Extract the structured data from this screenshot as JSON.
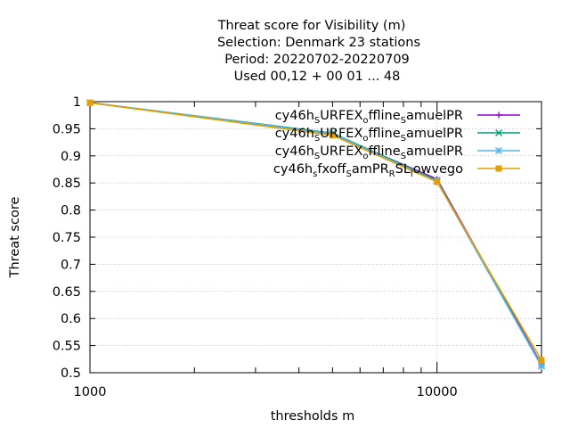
{
  "chart_data": {
    "type": "line",
    "title_lines": [
      "Threat score  for Visibility (m)",
      "Selection: Denmark      23 stations",
      "Period: 20220702-20220709",
      "Used  00,12  + 00 01 ... 48"
    ],
    "xlabel": "thresholds m",
    "ylabel": "Threat score",
    "x_scale": "log",
    "xlim": [
      1000,
      20000
    ],
    "ylim": [
      0.5,
      1.0
    ],
    "x_ticks": [
      {
        "value": 1000,
        "label": "1000"
      },
      {
        "value": 10000,
        "label": "10000"
      }
    ],
    "y_ticks": [
      {
        "value": 0.5,
        "label": "0.5"
      },
      {
        "value": 0.55,
        "label": "0.55"
      },
      {
        "value": 0.6,
        "label": "0.6"
      },
      {
        "value": 0.65,
        "label": "0.65"
      },
      {
        "value": 0.7,
        "label": "0.7"
      },
      {
        "value": 0.75,
        "label": "0.75"
      },
      {
        "value": 0.8,
        "label": "0.8"
      },
      {
        "value": 0.85,
        "label": "0.85"
      },
      {
        "value": 0.9,
        "label": "0.9"
      },
      {
        "value": 0.95,
        "label": "0.95"
      },
      {
        "value": 1.0,
        "label": "1"
      }
    ],
    "grid": true,
    "legend_position": "top-right",
    "series": [
      {
        "legend": [
          [
            "cy46h",
            ""
          ],
          [
            "S",
            "sub"
          ],
          [
            "URFEX",
            ""
          ],
          [
            "o",
            "sub"
          ],
          [
            "ffline",
            ""
          ],
          [
            "S",
            "sub"
          ],
          [
            "amuelPR",
            ""
          ]
        ],
        "color": "#9400d3",
        "marker": "plus",
        "x": [
          1000,
          5000,
          10000,
          20000
        ],
        "y": [
          0.998,
          0.94,
          0.857,
          0.515
        ]
      },
      {
        "legend": [
          [
            "cy46h",
            ""
          ],
          [
            "S",
            "sub"
          ],
          [
            "URFEX",
            ""
          ],
          [
            "o",
            "sub"
          ],
          [
            "ffline",
            ""
          ],
          [
            "S",
            "sub"
          ],
          [
            "amuelPR",
            ""
          ]
        ],
        "color": "#009e73",
        "marker": "x",
        "x": [
          1000,
          5000,
          10000,
          20000
        ],
        "y": [
          0.998,
          0.942,
          0.855,
          0.513
        ]
      },
      {
        "legend": [
          [
            "cy46h",
            ""
          ],
          [
            "S",
            "sub"
          ],
          [
            "URFEX",
            ""
          ],
          [
            "o",
            "sub"
          ],
          [
            "ffline",
            ""
          ],
          [
            "S",
            "sub"
          ],
          [
            "amuelPR",
            ""
          ]
        ],
        "color": "#56b4e9",
        "marker": "star",
        "x": [
          1000,
          5000,
          10000,
          20000
        ],
        "y": [
          0.998,
          0.941,
          0.853,
          0.512
        ]
      },
      {
        "legend": [
          [
            "cy46h",
            ""
          ],
          [
            "s",
            "sub"
          ],
          [
            "fxoff",
            ""
          ],
          [
            "S",
            "sub"
          ],
          [
            "amPR",
            ""
          ],
          [
            "R",
            "sub"
          ],
          [
            "SL",
            ""
          ],
          [
            "l",
            "sub"
          ],
          [
            "owvego",
            ""
          ]
        ],
        "color": "#e69f00",
        "marker": "box",
        "x": [
          1000,
          5000,
          10000,
          20000
        ],
        "y": [
          0.998,
          0.938,
          0.852,
          0.523
        ]
      }
    ]
  }
}
